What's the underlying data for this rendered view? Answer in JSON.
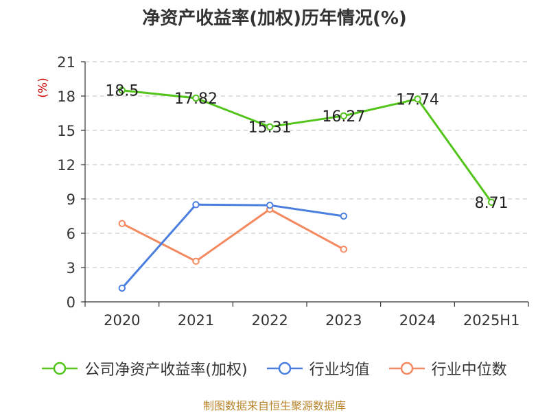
{
  "title": "净资产收益率(加权)历年情况(%)",
  "source": "制图数据来自恒生聚源数据库",
  "colors": {
    "company": "#52c41a",
    "industry_avg": "#4a7fe0",
    "industry_median": "#f4895f",
    "axis_unit": "#cc0000",
    "grid": "#cccccc",
    "axis": "#333333",
    "source": "#b8862e"
  },
  "chart_data": {
    "type": "line",
    "title": "净资产收益率(加权)历年情况(%)",
    "xlabel": "",
    "ylabel": "(%)",
    "categories": [
      "2020",
      "2021",
      "2022",
      "2023",
      "2024",
      "2025H1"
    ],
    "ylim": [
      0,
      21
    ],
    "yticks": [
      0,
      3,
      6,
      9,
      12,
      15,
      18,
      21
    ],
    "grid": true,
    "legend_position": "bottom",
    "series": [
      {
        "name": "公司净资产收益率(加权)",
        "color_key": "company",
        "values": [
          18.5,
          17.82,
          15.31,
          16.27,
          17.74,
          8.71
        ],
        "labels": [
          "18.5",
          "17.82",
          "15.31",
          "16.27",
          "17.74",
          "8.71"
        ]
      },
      {
        "name": "行业均值",
        "color_key": "industry_avg",
        "values": [
          1.2,
          8.5,
          8.45,
          7.5,
          null,
          null
        ]
      },
      {
        "name": "行业中位数",
        "color_key": "industry_median",
        "values": [
          6.85,
          3.55,
          8.1,
          4.6,
          null,
          null
        ]
      }
    ]
  }
}
